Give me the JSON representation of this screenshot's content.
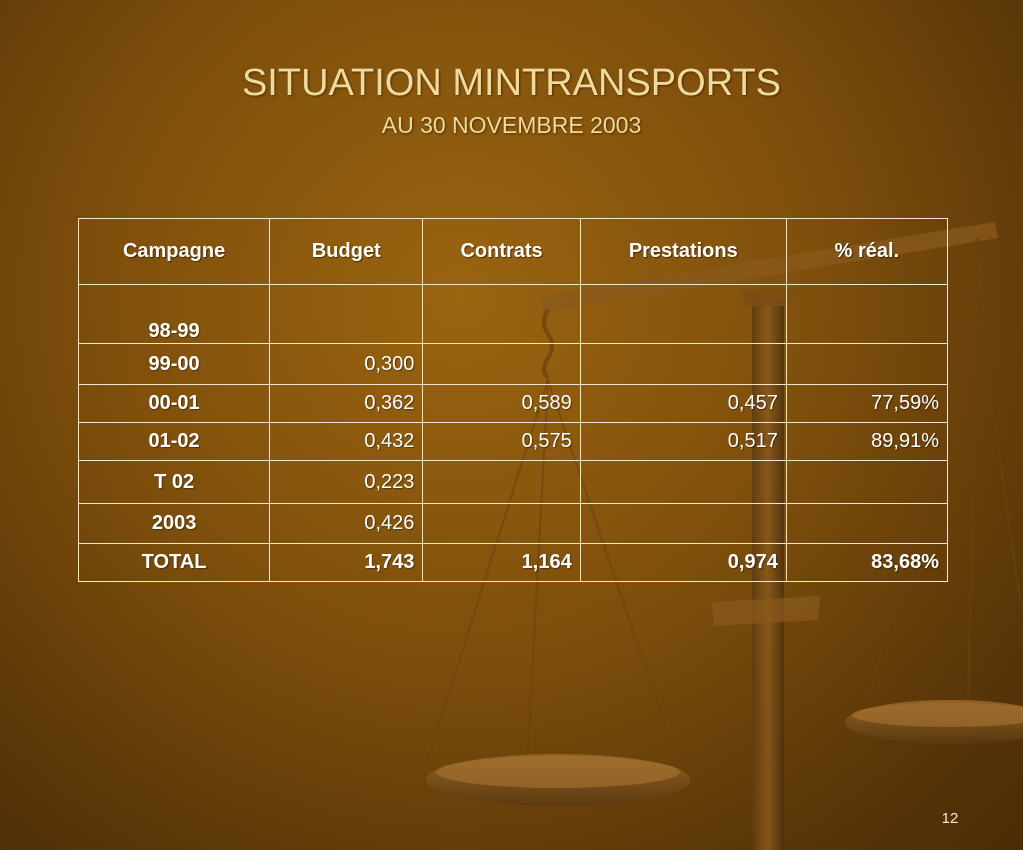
{
  "slide": {
    "title": "SITUATION MINTRANSPORTS",
    "subtitle": "AU 30 NOVEMBRE 2003",
    "page_number": "12",
    "background_image": "scales-of-justice",
    "colors": {
      "title": "#f0d99a",
      "table_text": "#ffffff",
      "table_border": "#f2e6cc",
      "background": "#7e4f0c"
    }
  },
  "table": {
    "headers": [
      "Campagne",
      "Budget",
      "Contrats",
      "Prestations",
      "% réal."
    ],
    "rows": [
      [
        "98-99",
        "",
        "",
        "",
        ""
      ],
      [
        "99-00",
        "0,300",
        "",
        "",
        ""
      ],
      [
        "00-01",
        "0,362",
        "0,589",
        "0,457",
        "77,59%"
      ],
      [
        "01-02",
        "0,432",
        "0,575",
        "0,517",
        "89,91%"
      ],
      [
        "T 02",
        "0,223",
        "",
        "",
        ""
      ],
      [
        "2003",
        "0,426",
        "",
        "",
        ""
      ],
      [
        "TOTAL",
        "1,743",
        "1,164",
        "0,974",
        "83,68%"
      ]
    ]
  }
}
